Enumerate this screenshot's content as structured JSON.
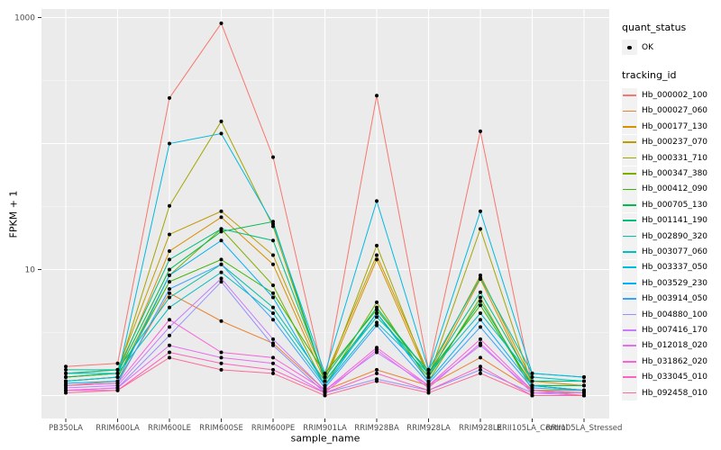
{
  "chart_data": {
    "type": "line",
    "title": "",
    "xlabel": "sample_name",
    "ylabel": "FPKM + 1",
    "y_scale": "log10",
    "ylim": [
      0.9,
      1100
    ],
    "grid": true,
    "legend_position": "right",
    "y_ticks": [
      {
        "label": "1000",
        "value": 1000
      },
      {
        "label": "10",
        "value": 10
      }
    ],
    "y_gridlines_major": [
      1,
      10,
      100,
      1000
    ],
    "y_gridlines_minor": [
      3.162,
      31.62,
      316.2
    ],
    "categories": [
      "PB350LA",
      "RRIM600LA",
      "RRIM600LE",
      "RRIM600SE",
      "RRIM600PE",
      "RRIM901LA",
      "RRIM928BA",
      "RRIM928LA",
      "RRIM928LE",
      "RRII105LA_Control",
      "RRII105LA_Stressed"
    ],
    "marker_legend": {
      "title": "quant_status",
      "label": "OK",
      "symbol": "point",
      "color": "#000000"
    },
    "series_legend_title": "tracking_id",
    "series": [
      {
        "name": "Hb_000002_100",
        "color": "#F8766D",
        "values": [
          1.7,
          1.8,
          230,
          900,
          78,
          1.3,
          240,
          1.6,
          125,
          1.2,
          1.1
        ]
      },
      {
        "name": "Hb_000027_060",
        "color": "#EA8331",
        "values": [
          1.2,
          1.3,
          6.5,
          3.9,
          2.6,
          1.1,
          1.6,
          1.2,
          2.0,
          1.1,
          1.0
        ]
      },
      {
        "name": "Hb_000177_130",
        "color": "#D89000",
        "values": [
          1.4,
          1.5,
          14,
          26,
          11,
          1.3,
          12,
          1.4,
          8.4,
          1.2,
          1.1
        ]
      },
      {
        "name": "Hb_000237_070",
        "color": "#C09B00",
        "values": [
          1.5,
          1.6,
          19,
          29,
          13,
          1.4,
          13,
          1.5,
          9.0,
          1.3,
          1.2
        ]
      },
      {
        "name": "Hb_000331_710",
        "color": "#A3A500",
        "values": [
          1.4,
          1.5,
          32,
          150,
          22,
          1.3,
          15.5,
          1.4,
          21,
          1.2,
          1.2
        ]
      },
      {
        "name": "Hb_000347_380",
        "color": "#7CAE00",
        "values": [
          1.3,
          1.4,
          9,
          21,
          7.5,
          1.2,
          5.5,
          1.3,
          6.0,
          1.1,
          1.1
        ]
      },
      {
        "name": "Hb_000412_090",
        "color": "#39B600",
        "values": [
          1.3,
          1.4,
          8,
          12,
          6.5,
          1.5,
          4.8,
          1.5,
          5.2,
          1.2,
          1.1
        ]
      },
      {
        "name": "Hb_000705_130",
        "color": "#00BB4E",
        "values": [
          1.4,
          1.5,
          10,
          20,
          24,
          1.3,
          4.5,
          1.4,
          5.6,
          1.2,
          1.2
        ]
      },
      {
        "name": "Hb_001141_190",
        "color": "#00BF7D",
        "values": [
          1.5,
          1.6,
          12,
          21,
          17,
          1.4,
          5.0,
          1.5,
          6.6,
          1.3,
          1.3
        ]
      },
      {
        "name": "Hb_002890_320",
        "color": "#00C1A3",
        "values": [
          1.6,
          1.6,
          6,
          11,
          5,
          1.3,
          4.2,
          1.6,
          8.6,
          1.5,
          1.4
        ]
      },
      {
        "name": "Hb_003077_060",
        "color": "#00BFC4",
        "values": [
          1.5,
          1.5,
          5,
          9.5,
          4.5,
          1.2,
          3.8,
          1.5,
          4.5,
          1.4,
          1.3
        ]
      },
      {
        "name": "Hb_003337_050",
        "color": "#00BAE0",
        "values": [
          1.3,
          1.4,
          100,
          120,
          23,
          1.5,
          35,
          1.6,
          29,
          1.5,
          1.4
        ]
      },
      {
        "name": "Hb_003529_230",
        "color": "#00B0F6",
        "values": [
          1.25,
          1.3,
          9,
          17,
          6,
          1.2,
          4.5,
          1.3,
          4.0,
          1.2,
          1.1
        ]
      },
      {
        "name": "Hb_003914_050",
        "color": "#35A2FF",
        "values": [
          1.2,
          1.25,
          7,
          11,
          4,
          1.15,
          3.6,
          1.25,
          3.5,
          1.15,
          1.1
        ]
      },
      {
        "name": "Hb_004880_100",
        "color": "#9590FF",
        "values": [
          1.1,
          1.15,
          3,
          8,
          2.5,
          1.05,
          1.35,
          1.1,
          1.6,
          1.05,
          1.05
        ]
      },
      {
        "name": "Hb_007416_170",
        "color": "#C77CFF",
        "values": [
          1.15,
          1.2,
          3.5,
          8.5,
          2.8,
          1.1,
          2.2,
          1.2,
          2.5,
          1.1,
          1.05
        ]
      },
      {
        "name": "Hb_012018_020",
        "color": "#E76BF3",
        "values": [
          1.1,
          1.15,
          2.5,
          2.0,
          1.8,
          1.05,
          2.3,
          1.15,
          2.6,
          1.05,
          1.0
        ]
      },
      {
        "name": "Hb_031862_020",
        "color": "#FA62DB",
        "values": [
          1.2,
          1.25,
          4.0,
          2.2,
          2.0,
          1.1,
          2.4,
          1.2,
          2.8,
          1.1,
          1.05
        ]
      },
      {
        "name": "Hb_033045_010",
        "color": "#FF62BC",
        "values": [
          1.1,
          1.1,
          2.2,
          1.8,
          1.6,
          1.05,
          1.5,
          1.1,
          1.7,
          1.0,
          1.0
        ]
      },
      {
        "name": "Hb_092458_010",
        "color": "#FF6A98",
        "values": [
          1.05,
          1.1,
          2.0,
          1.6,
          1.5,
          1.0,
          1.3,
          1.05,
          1.5,
          1.0,
          1.0
        ]
      }
    ]
  },
  "theme": {
    "panel_background": "#EBEBEB",
    "gridline_color": "#FFFFFF",
    "tick_label_color": "#4D4D4D",
    "axis_title_color": "#000000",
    "legend_key_background": "#F2F2F2",
    "point_color": "#000000"
  }
}
